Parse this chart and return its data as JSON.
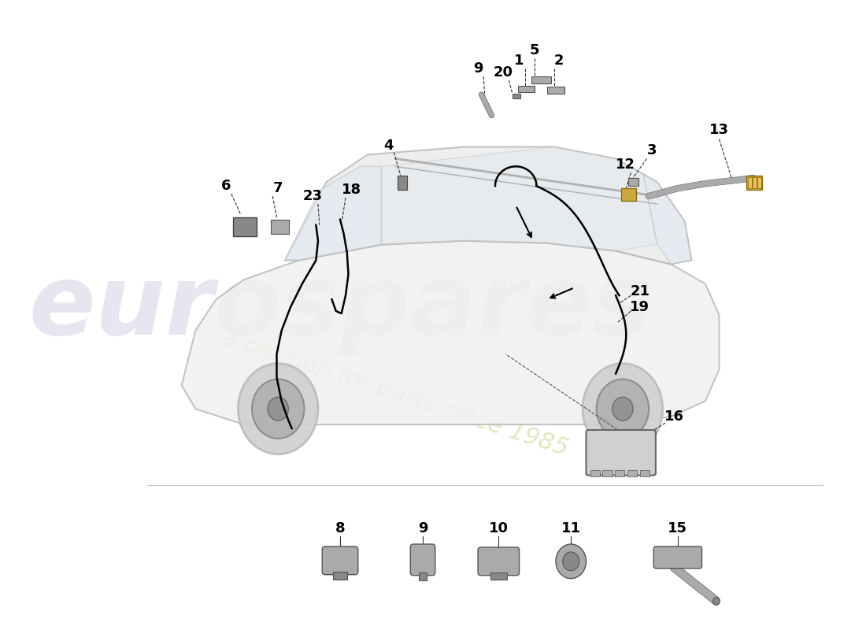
{
  "bg_color": "#ffffff",
  "part_color": "#888888",
  "part_color_light": "#aaaaaa",
  "part_color_gold": "#c8a840",
  "line_color": "#000000",
  "label_color": "#000000",
  "car_body_color": "#f0f0f0",
  "car_outline_color": "#bbbbbb",
  "watermark_text1": "eurospares",
  "watermark_text2": "a passion for parts since 1985",
  "watermark_color1": "#c8c8e0",
  "watermark_color2": "#d8d8a0"
}
